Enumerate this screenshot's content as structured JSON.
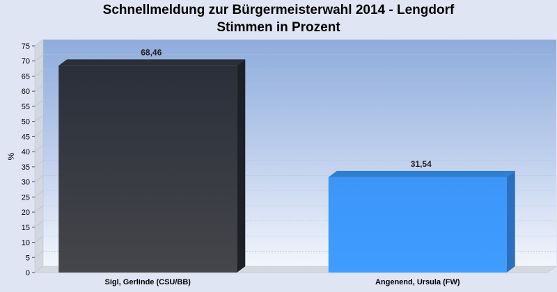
{
  "chart_data": {
    "type": "bar",
    "title": "Schnellmeldung zur Bürgermeisterwahl 2014 - Lengdorf",
    "subtitle": "Stimmen in Prozent",
    "ylabel": "%",
    "xlabel": "",
    "ylim": [
      0,
      75
    ],
    "yticks": [
      "0",
      "5",
      "10",
      "15",
      "20",
      "25",
      "30",
      "35",
      "40",
      "45",
      "50",
      "55",
      "60",
      "65",
      "70",
      "75"
    ],
    "grid": true,
    "legend": "none",
    "categories": [
      "Sigl, Gerlinde (CSU/BB)",
      "Angenend, Ursula (FW)"
    ],
    "values": [
      68.46,
      31.54
    ],
    "value_labels": [
      "68,46",
      "31,54"
    ],
    "colors": [
      "#3a3b3f",
      "#3d9bfd"
    ]
  }
}
